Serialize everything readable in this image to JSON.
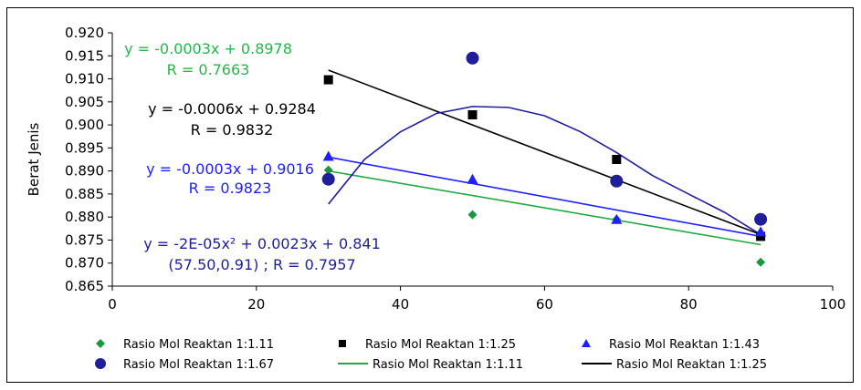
{
  "chart_data": {
    "type": "scatter",
    "ylabel": "Berat Jenis",
    "xlabel": "",
    "xlim": [
      0,
      100
    ],
    "ylim": [
      0.865,
      0.92
    ],
    "x_ticks": [
      "0",
      "20",
      "40",
      "60",
      "80",
      "100"
    ],
    "y_ticks": [
      "0.865",
      "0.870",
      "0.875",
      "0.880",
      "0.885",
      "0.890",
      "0.895",
      "0.900",
      "0.905",
      "0.910",
      "0.915",
      "0.920"
    ],
    "grid": false,
    "legend_position": "bottom",
    "series": [
      {
        "name": "Rasio Mol Reaktan 1:1.11",
        "kind": "points",
        "marker": "diamond",
        "color": "#1a9641",
        "x": [
          30,
          50,
          70,
          90
        ],
        "y": [
          0.8902,
          0.8805,
          0.8795,
          0.8702
        ]
      },
      {
        "name": "Rasio Mol Reaktan 1:1.25",
        "kind": "points",
        "marker": "square",
        "color": "#000000",
        "x": [
          30,
          50,
          70,
          90
        ],
        "y": [
          0.9098,
          0.9022,
          0.8925,
          0.8758
        ]
      },
      {
        "name": "Rasio Mol Reaktan 1:1.43",
        "kind": "points",
        "marker": "triangle",
        "color": "#1f1fff",
        "x": [
          30,
          50,
          70,
          90
        ],
        "y": [
          0.8932,
          0.8882,
          0.8795,
          0.8768
        ]
      },
      {
        "name": "Rasio Mol Reaktan 1:1.67",
        "kind": "points",
        "marker": "circle",
        "color": "#1f1f99",
        "x": [
          30,
          50,
          70,
          90
        ],
        "y": [
          0.8882,
          0.9145,
          0.8878,
          0.8795
        ]
      },
      {
        "name": "Rasio Mol Reaktan 1:1.11",
        "kind": "line",
        "color": "#22a845",
        "x": [
          30,
          90
        ],
        "y": [
          0.89,
          0.874
        ]
      },
      {
        "name": "Rasio Mol Reaktan 1:1.25",
        "kind": "line",
        "color": "#000000",
        "x": [
          30,
          90
        ],
        "y": [
          0.9119,
          0.8762
        ]
      }
    ],
    "trendlines_unlabeled": [
      {
        "kind": "line",
        "color": "#1f1fff",
        "x": [
          30,
          90
        ],
        "y": [
          0.893,
          0.8758
        ]
      },
      {
        "kind": "curve",
        "color": "#1f1f99",
        "x": [
          30,
          35,
          40,
          45,
          50,
          55,
          60,
          65,
          70,
          75,
          80,
          85,
          90
        ],
        "y": [
          0.8828,
          0.8925,
          0.8985,
          0.9025,
          0.904,
          0.9038,
          0.902,
          0.8985,
          0.894,
          0.889,
          0.885,
          0.881,
          0.8762
        ]
      }
    ],
    "annotations": [
      {
        "lines": [
          "y = -0.0003x + 0.8978",
          "R = 0.7663"
        ],
        "color": "#2ab34a"
      },
      {
        "lines": [
          "y = -0.0006x + 0.9284",
          "R = 0.9832"
        ],
        "color": "#000000"
      },
      {
        "lines": [
          "y = -0.0003x + 0.9016",
          "R = 0.9823"
        ],
        "color": "#1f1fff"
      },
      {
        "lines": [
          "y = -2E-05x² + 0.0023x + 0.841",
          "(57.50,0.91) ; R = 0.7957"
        ],
        "color": "#1f1f99"
      }
    ]
  }
}
